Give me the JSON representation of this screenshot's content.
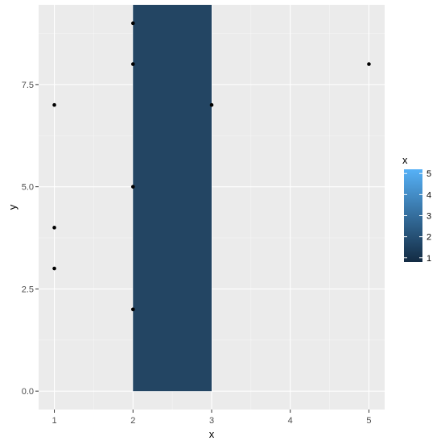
{
  "chart_data": {
    "type": "scatter",
    "title": "",
    "xlabel": "x",
    "ylabel": "y",
    "xlim": [
      0.8,
      5.2
    ],
    "ylim": [
      -0.45,
      9.45
    ],
    "xticks": [
      1,
      2,
      3,
      4,
      5
    ],
    "xtick_labels": [
      "1",
      "2",
      "3",
      "4",
      "5"
    ],
    "yticks": [
      0,
      2.5,
      5,
      7.5
    ],
    "ytick_labels": [
      "0.0",
      "2.5",
      "5.0",
      "7.5"
    ],
    "grid": true,
    "points": [
      {
        "x": 1,
        "y": 7
      },
      {
        "x": 1,
        "y": 4
      },
      {
        "x": 1,
        "y": 3
      },
      {
        "x": 2,
        "y": 9
      },
      {
        "x": 2,
        "y": 8
      },
      {
        "x": 2,
        "y": 5
      },
      {
        "x": 2,
        "y": 2
      },
      {
        "x": 3,
        "y": 7
      },
      {
        "x": 5,
        "y": 8
      }
    ],
    "rect": {
      "xmin": 2,
      "xmax": 3,
      "ymin": 0,
      "ymax": 9.45,
      "fill_value": 2
    },
    "legend": {
      "title": "x",
      "placement": "right",
      "range": [
        0.8,
        5.2
      ],
      "ticks": [
        1,
        2,
        3,
        4,
        5
      ],
      "tick_labels": [
        "1",
        "2",
        "3",
        "4",
        "5"
      ],
      "low_color": "#132B43",
      "high_color": "#56B1F7"
    },
    "colors": {
      "panel_bg": "#EBEBEB",
      "grid_major": "#FFFFFF",
      "rect_fill": "#234563",
      "point": "#000000"
    }
  }
}
